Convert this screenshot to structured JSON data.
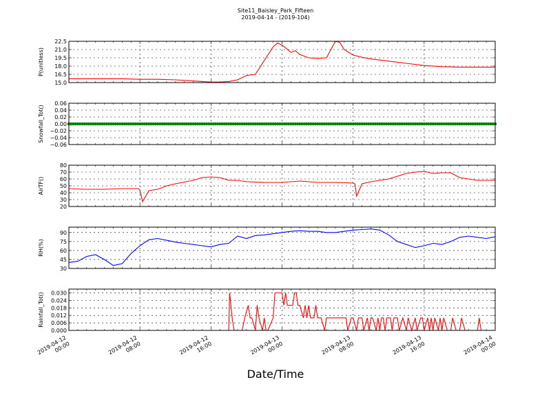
{
  "title": "Site11_Baisley_Park_Fifteen",
  "subtitle": "2019-04-14 - (2019-104)",
  "xlabel": "Date/Time",
  "x_tick_labels": [
    [
      "2019-04-12",
      "00:00"
    ],
    [
      "2019-04-12",
      "08:00"
    ],
    [
      "2019-04-12",
      "16:00"
    ],
    [
      "2019-04-13",
      "00:00"
    ],
    [
      "2019-04-13",
      "08:00"
    ],
    [
      "2019-04-13",
      "16:00"
    ],
    [
      "2019-04-14",
      "00:00"
    ]
  ],
  "chart_data": [
    {
      "type": "line",
      "ylabel": "P(unitless)",
      "ylim": [
        15.0,
        22.5
      ],
      "yticks": [
        "15.0",
        "16.5",
        "18.0",
        "19.5",
        "21.0",
        "22.5"
      ],
      "grid": true,
      "x_hours": [
        0,
        2,
        4,
        6,
        8,
        10,
        12,
        14,
        16,
        17,
        18,
        19,
        20,
        21,
        22,
        23,
        23.5,
        24,
        24.5,
        25,
        25.5,
        26,
        27,
        28,
        29,
        30,
        30.5,
        31,
        32,
        33,
        34,
        36,
        38,
        40,
        42,
        44,
        46,
        48
      ],
      "series": [
        {
          "color": "#ff0000",
          "values": [
            15.7,
            15.7,
            15.7,
            15.7,
            15.6,
            15.6,
            15.5,
            15.3,
            15.1,
            15.1,
            15.2,
            15.5,
            16.3,
            16.5,
            19,
            21.5,
            22.2,
            21.8,
            21.2,
            20.5,
            20.8,
            20.1,
            19.5,
            19.4,
            19.5,
            22.5,
            22.3,
            21.0,
            20,
            19.6,
            19.3,
            18.9,
            18.5,
            18.1,
            17.9,
            17.8,
            17.8,
            17.8
          ]
        }
      ]
    },
    {
      "type": "scatter",
      "ylabel": "Snowfall_Tot()",
      "ylim": [
        -0.06,
        0.06
      ],
      "yticks": [
        "0.06",
        "0.04",
        "0.02",
        "0.00",
        "−0.02",
        "−0.04",
        "−0.06"
      ],
      "grid": true,
      "series": [
        {
          "color": "#008000",
          "constant": 0.0,
          "interval_hours": 0.25
        }
      ]
    },
    {
      "type": "line",
      "ylabel": "AirTF()",
      "ylim": [
        20,
        80
      ],
      "yticks": [
        "80",
        "70",
        "60",
        "50",
        "40",
        "30",
        "20"
      ],
      "grid": true,
      "x_hours": [
        0,
        2,
        4,
        6,
        7.8,
        8,
        8.3,
        9,
        10,
        11,
        12,
        14,
        15,
        16,
        17,
        17.5,
        18,
        19,
        20,
        22,
        24,
        26,
        28,
        30,
        32,
        32.2,
        32.4,
        33,
        34,
        36,
        37,
        38,
        39,
        40,
        41,
        42,
        43,
        44,
        46,
        48
      ],
      "series": [
        {
          "color": "#ff0000",
          "values": [
            46,
            45,
            45,
            46,
            46,
            44,
            27,
            43,
            45,
            50,
            53,
            58,
            62,
            63,
            62,
            60,
            58,
            58,
            56,
            55,
            55,
            57,
            55,
            55,
            54,
            53,
            35,
            53,
            56,
            60,
            64,
            68,
            70,
            71,
            68,
            69,
            69,
            62,
            58,
            58
          ]
        }
      ]
    },
    {
      "type": "line",
      "ylabel": "RH(%)",
      "ylim": [
        30,
        99
      ],
      "yticks": [
        "90",
        "75",
        "60",
        "45",
        "30"
      ],
      "grid": true,
      "x_hours": [
        0,
        1,
        2,
        3,
        4,
        5,
        6,
        7,
        8,
        9,
        10,
        11,
        12,
        13,
        14,
        15,
        16,
        17,
        18,
        19,
        20,
        21,
        22,
        23,
        24,
        25,
        26,
        27,
        28,
        29,
        30,
        31,
        32,
        33,
        34,
        35,
        36,
        37,
        38,
        39,
        40,
        41,
        42,
        43,
        44,
        45,
        46,
        47,
        48
      ],
      "series": [
        {
          "color": "#0000ff",
          "values": [
            40,
            42,
            50,
            53,
            45,
            35,
            38,
            55,
            68,
            78,
            80,
            77,
            74,
            72,
            70,
            68,
            66,
            70,
            72,
            84,
            80,
            85,
            86,
            88,
            90,
            92,
            93,
            92,
            92,
            90,
            90,
            92,
            94,
            95,
            96,
            94,
            86,
            75,
            70,
            65,
            68,
            72,
            70,
            75,
            82,
            84,
            82,
            80,
            83
          ]
        }
      ]
    },
    {
      "type": "line",
      "ylabel": "Rainfall_Tot()",
      "ylim": [
        0.0,
        0.033
      ],
      "yticks": [
        "0.030",
        "0.024",
        "0.018",
        "0.012",
        "0.006",
        "0.000"
      ],
      "grid": true,
      "x_hours": [
        0,
        18.0,
        18.1,
        18.4,
        18.6,
        19.5,
        19.8,
        20.2,
        20.4,
        20.6,
        21.0,
        21.2,
        21.4,
        21.8,
        22.0,
        22.2,
        22.4,
        23.0,
        23.2,
        23.4,
        23.6,
        23.8,
        24.0,
        24.2,
        24.4,
        24.6,
        25.0,
        25.2,
        25.4,
        25.6,
        25.8,
        26.0,
        26.4,
        26.6,
        26.8,
        27.0,
        27.2,
        27.6,
        27.8,
        28.0,
        28.4,
        28.8,
        29.0,
        29.2,
        29.6,
        30.0,
        31.2,
        31.4,
        31.8,
        32.0,
        32.4,
        32.6,
        33.0,
        33.2,
        33.6,
        33.8,
        34.0,
        34.2,
        34.6,
        34.8,
        35.0,
        35.2,
        35.4,
        35.6,
        35.8,
        36.0,
        36.2,
        36.4,
        36.6,
        37.0,
        37.2,
        37.6,
        38.0,
        38.2,
        38.6,
        39.0,
        39.2,
        39.6,
        39.8,
        40.0,
        40.4,
        40.6,
        40.8,
        41.0,
        41.2,
        41.6,
        41.8,
        42.0,
        42.2,
        42.6,
        43.0,
        43.2,
        43.6,
        44.0,
        44.2,
        44.6,
        45.0,
        46.0,
        46.2,
        46.4,
        48.0
      ],
      "series": [
        {
          "color": "#ff0000",
          "values": [
            0,
            0,
            0.03,
            0.009,
            0,
            0,
            0.01,
            0.02,
            0.01,
            0.01,
            0,
            0.02,
            0.01,
            0,
            0.01,
            0,
            0,
            0.01,
            0.03,
            0.03,
            0.03,
            0.03,
            0.03,
            0.02,
            0.03,
            0.02,
            0.02,
            0.02,
            0.03,
            0.03,
            0.02,
            0.02,
            0.01,
            0.02,
            0.01,
            0.02,
            0.01,
            0.01,
            0.02,
            0.01,
            0.01,
            0,
            0.01,
            0.01,
            0.01,
            0.01,
            0.01,
            0,
            0.01,
            0.01,
            0,
            0.01,
            0.01,
            0,
            0.01,
            0,
            0.01,
            0.01,
            0,
            0.01,
            0,
            0.01,
            0.01,
            0,
            0.01,
            0.01,
            0.01,
            0,
            0.01,
            0.01,
            0,
            0.01,
            0,
            0.01,
            0,
            0.01,
            0,
            0.01,
            0.01,
            0,
            0.01,
            0,
            0.01,
            0,
            0.01,
            0,
            0.01,
            0,
            0.01,
            0,
            0,
            0.01,
            0,
            0,
            0.01,
            0,
            0,
            0,
            0.01,
            0,
            0
          ]
        }
      ]
    }
  ]
}
